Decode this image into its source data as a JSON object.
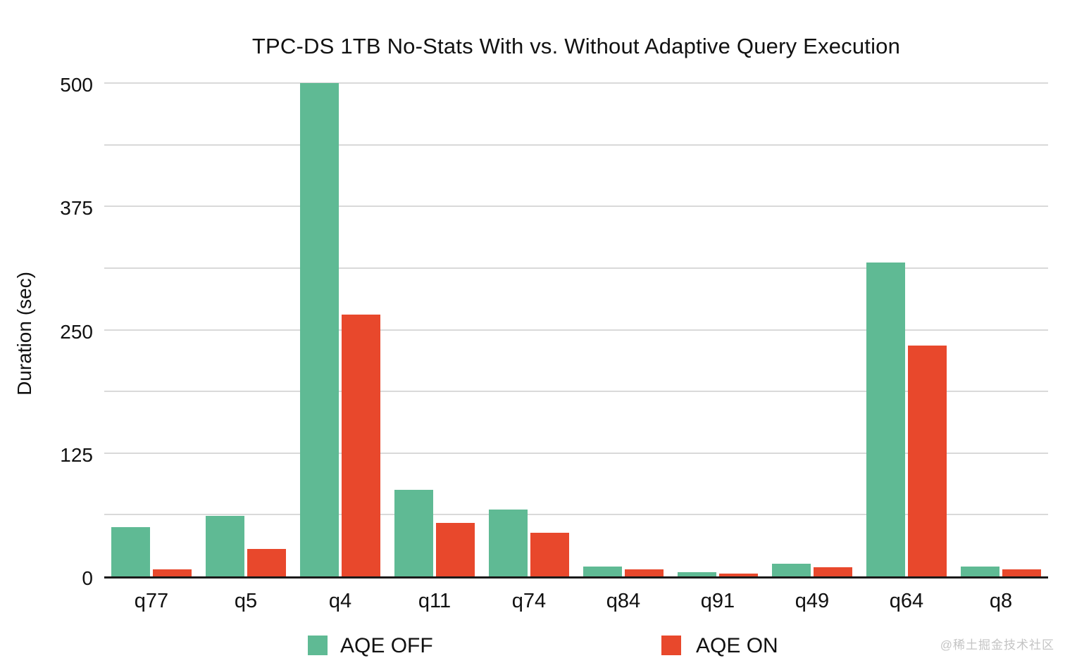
{
  "watermark": "@稀土掘金技术社区",
  "chart_data": {
    "type": "bar",
    "title": "TPC-DS 1TB No-Stats With vs. Without Adaptive Query Execution",
    "xlabel": "",
    "ylabel": "Duration (sec)",
    "categories": [
      "q77",
      "q5",
      "q4",
      "q11",
      "q74",
      "q84",
      "q91",
      "q49",
      "q64",
      "q8"
    ],
    "series": [
      {
        "name": "AQE OFF",
        "color": "#5fba94",
        "values": [
          50,
          61,
          500,
          88,
          68,
          10,
          4,
          13,
          318,
          10
        ]
      },
      {
        "name": "AQE ON",
        "color": "#e8482c",
        "values": [
          7,
          28,
          265,
          54,
          44,
          7,
          3,
          9,
          234,
          7
        ]
      }
    ],
    "ylim": [
      0,
      500
    ],
    "yticks": [
      0,
      125,
      250,
      375,
      500
    ],
    "minor_gridline_step": 62.5,
    "grid": true,
    "legend_position": "bottom",
    "colors": {
      "axis": "#1a1a1a",
      "gridline": "#d9d9d9",
      "text": "#111111"
    }
  }
}
